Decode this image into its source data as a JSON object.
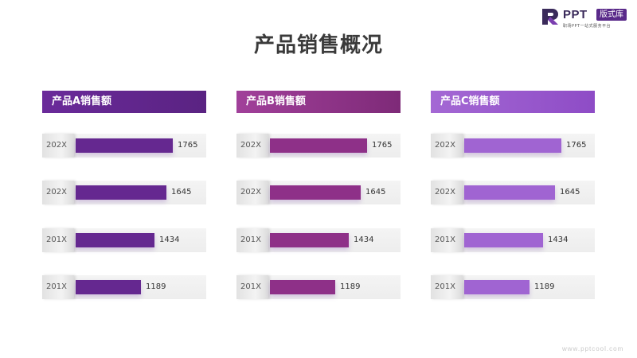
{
  "logo": {
    "brand": "PPT",
    "badge": "版式库",
    "tagline": "职场PPT一站式服务平台",
    "color": "#5a2a8a"
  },
  "title": "产品销售概况",
  "chart_data": [
    {
      "type": "bar",
      "orientation": "horizontal",
      "title": "产品A销售额",
      "categories": [
        "202X",
        "202X",
        "201X",
        "201X"
      ],
      "values": [
        1765,
        1645,
        1434,
        1189
      ],
      "header_color": [
        "#6a2a9a",
        "#5a2382"
      ],
      "bar_color": "#652890",
      "xlim": [
        0,
        2100
      ]
    },
    {
      "type": "bar",
      "orientation": "horizontal",
      "title": "产品B销售额",
      "categories": [
        "202X",
        "202X",
        "201X",
        "201X"
      ],
      "values": [
        1765,
        1645,
        1434,
        1189
      ],
      "header_color": [
        "#a1409a",
        "#7e2a78"
      ],
      "bar_color": "#8e3088",
      "xlim": [
        0,
        2100
      ]
    },
    {
      "type": "bar",
      "orientation": "horizontal",
      "title": "产品C销售额",
      "categories": [
        "202X",
        "202X",
        "201X",
        "201X"
      ],
      "values": [
        1765,
        1645,
        1434,
        1189
      ],
      "header_color": [
        "#a468d4",
        "#8e4cc6"
      ],
      "bar_color": "#a064d2",
      "xlim": [
        0,
        2100
      ]
    }
  ],
  "watermark": "www.pptcool.com"
}
